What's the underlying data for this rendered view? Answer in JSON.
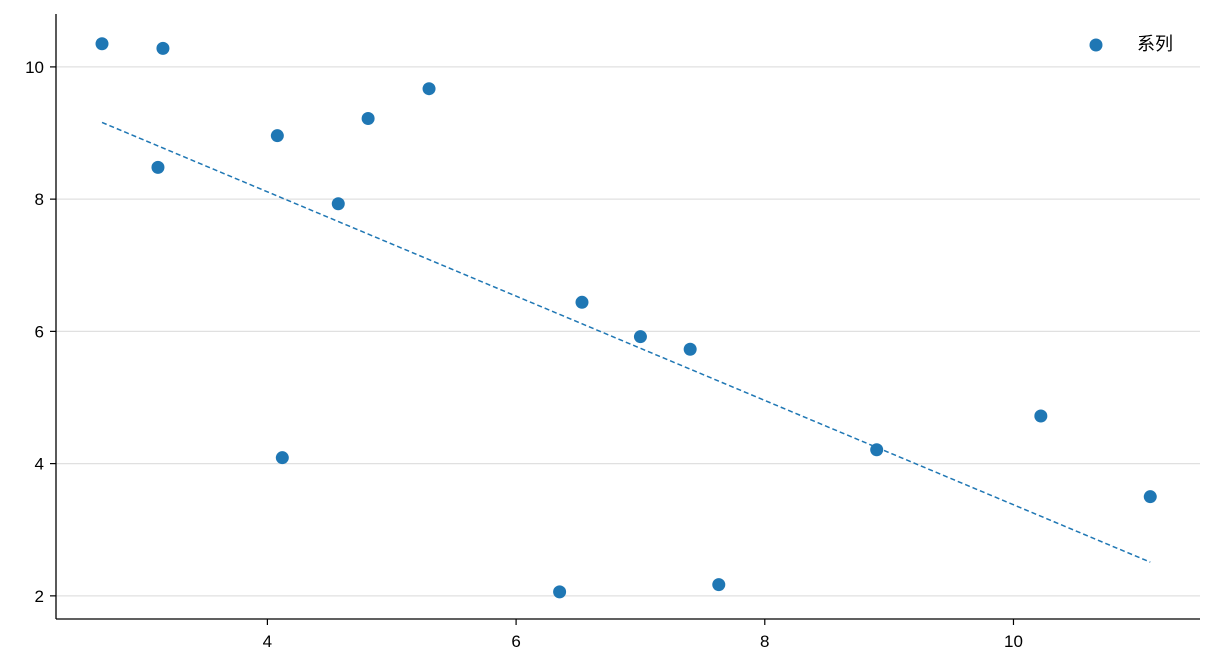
{
  "chart_data": {
    "type": "scatter",
    "title": "",
    "xlabel": "",
    "ylabel": "",
    "xlim": [
      2.3,
      11.5
    ],
    "ylim": [
      1.65,
      10.8
    ],
    "x_ticks": [
      4,
      6,
      8,
      10
    ],
    "y_ticks": [
      2,
      4,
      6,
      8,
      10
    ],
    "grid": "horizontal",
    "legend_position": "top-right",
    "series": [
      {
        "name": "系列",
        "color": "#1f77b4",
        "marker": "circle",
        "points": [
          {
            "x": 2.67,
            "y": 10.35
          },
          {
            "x": 3.16,
            "y": 10.28
          },
          {
            "x": 3.12,
            "y": 8.48
          },
          {
            "x": 4.08,
            "y": 8.96
          },
          {
            "x": 4.12,
            "y": 4.09
          },
          {
            "x": 4.57,
            "y": 7.93
          },
          {
            "x": 4.81,
            "y": 9.22
          },
          {
            "x": 5.3,
            "y": 9.67
          },
          {
            "x": 6.35,
            "y": 2.06
          },
          {
            "x": 6.53,
            "y": 6.44
          },
          {
            "x": 7.0,
            "y": 5.92
          },
          {
            "x": 7.4,
            "y": 5.73
          },
          {
            "x": 7.63,
            "y": 2.17
          },
          {
            "x": 8.9,
            "y": 4.21
          },
          {
            "x": 10.22,
            "y": 4.72
          },
          {
            "x": 11.1,
            "y": 3.5
          }
        ]
      }
    ],
    "trendline": {
      "style": "dashed",
      "color": "#1f77b4",
      "x": [
        2.67,
        11.1
      ],
      "y": [
        9.16,
        2.51
      ]
    }
  }
}
